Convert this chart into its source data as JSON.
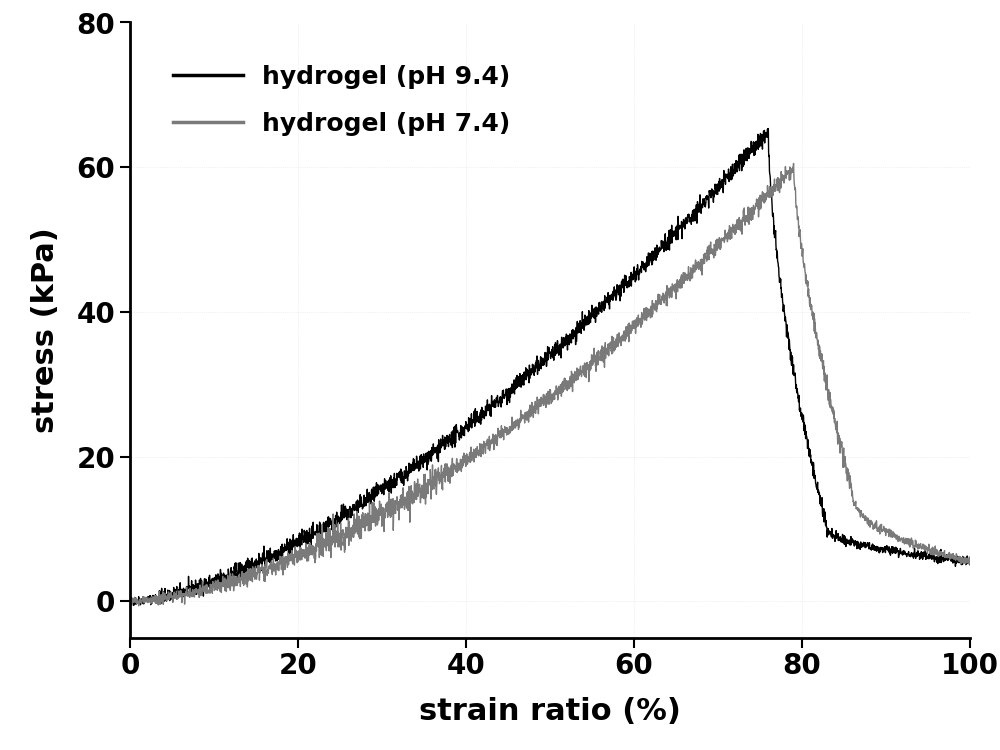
{
  "title": "",
  "xlabel": "strain ratio (%)",
  "ylabel": "stress (kPa)",
  "xlim": [
    0,
    100
  ],
  "ylim": [
    -5,
    80
  ],
  "yticks": [
    0,
    20,
    40,
    60,
    80
  ],
  "xticks": [
    0,
    20,
    40,
    60,
    80,
    100
  ],
  "line1_color": "#000000",
  "line2_color": "#7a7a7a",
  "line1_label": "hydrogel (pH 9.4)",
  "line2_label": "hydrogel (pH 7.4)",
  "line_width": 1.0,
  "xlabel_fontsize": 22,
  "ylabel_fontsize": 22,
  "tick_fontsize": 20,
  "legend_fontsize": 18,
  "background_color": "#ffffff",
  "dot_grid_color": "#d8d8d8",
  "noise_seed1": 42,
  "noise_seed2": 123
}
